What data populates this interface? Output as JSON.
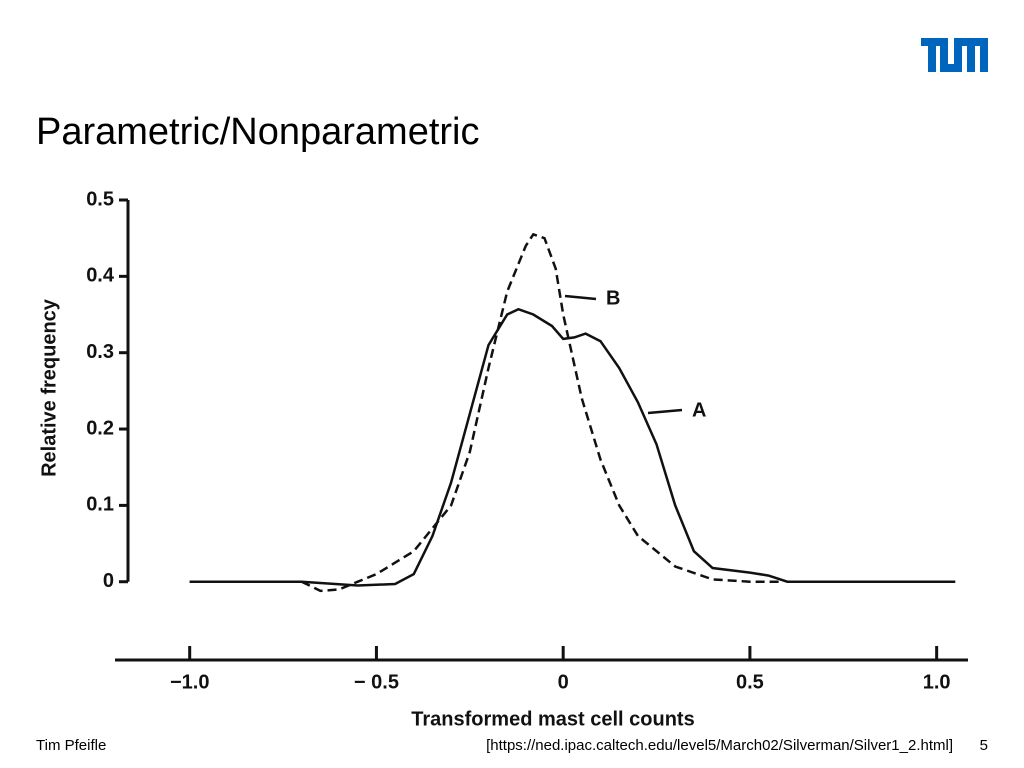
{
  "title": "Parametric/Nonparametric",
  "footer": {
    "author": "Tim Pfeifle",
    "source": "[https://ned.ipac.caltech.edu/level5/March02/Silverman/Silver1_2.html]",
    "page": "5"
  },
  "chart_data": {
    "type": "line",
    "xlabel": "Transformed mast cell counts",
    "ylabel": "Relative frequency",
    "xlim": [
      -1.2,
      1.1
    ],
    "ylim": [
      -0.02,
      0.5
    ],
    "xticks": [
      {
        "value": -1,
        "label": "−1.0"
      },
      {
        "value": -0.5,
        "label": "− 0.5"
      },
      0,
      0.5,
      {
        "value": 1,
        "label": "1.0"
      }
    ],
    "yticks": [
      0,
      0.1,
      0.2,
      0.3,
      0.4,
      0.5
    ],
    "series": [
      {
        "name": "A",
        "color": "#111111",
        "dash": false,
        "x": [
          -1.0,
          -0.7,
          -0.55,
          -0.45,
          -0.4,
          -0.35,
          -0.3,
          -0.25,
          -0.2,
          -0.15,
          -0.12,
          -0.08,
          -0.03,
          0,
          0.03,
          0.06,
          0.1,
          0.15,
          0.2,
          0.25,
          0.3,
          0.35,
          0.4,
          0.5,
          0.55,
          0.6,
          0.7,
          1.05
        ],
        "values": [
          0,
          0,
          -0.005,
          -0.003,
          0.01,
          0.06,
          0.13,
          0.22,
          0.31,
          0.35,
          0.357,
          0.35,
          0.335,
          0.318,
          0.32,
          0.325,
          0.315,
          0.28,
          0.235,
          0.18,
          0.1,
          0.04,
          0.018,
          0.012,
          0.008,
          0,
          0,
          0
        ]
      },
      {
        "name": "B",
        "color": "#111111",
        "dash": true,
        "x": [
          -1.0,
          -0.7,
          -0.65,
          -0.6,
          -0.55,
          -0.5,
          -0.4,
          -0.3,
          -0.25,
          -0.2,
          -0.15,
          -0.1,
          -0.08,
          -0.05,
          -0.02,
          0,
          0.05,
          0.1,
          0.15,
          0.2,
          0.3,
          0.4,
          0.5,
          0.58
        ],
        "values": [
          0,
          0,
          -0.012,
          -0.01,
          0,
          0.01,
          0.04,
          0.1,
          0.17,
          0.28,
          0.38,
          0.44,
          0.455,
          0.45,
          0.41,
          0.35,
          0.24,
          0.16,
          0.1,
          0.06,
          0.02,
          0.003,
          0,
          0
        ]
      }
    ]
  }
}
